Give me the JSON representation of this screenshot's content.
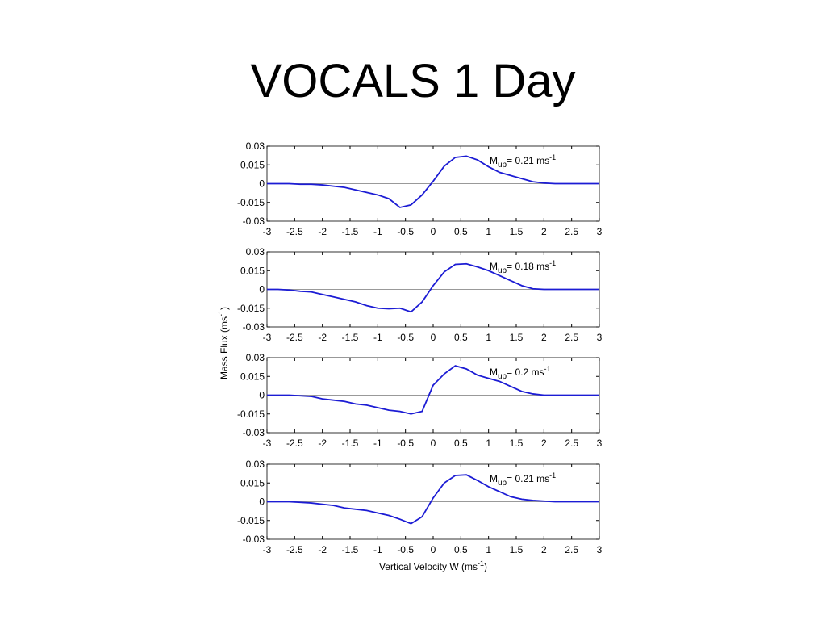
{
  "title": "VOCALS 1 Day",
  "ylabel": {
    "text": "Mass Flux (ms",
    "superscript": "-1",
    "suffix": ")"
  },
  "xlabel": {
    "text": "Vertical Velocity W (ms",
    "superscript": "-1",
    "suffix": ")"
  },
  "chart_data": [
    {
      "type": "line",
      "color": "#1c1cd4",
      "annotation": {
        "symbol": "M",
        "subscript": "up",
        "text": "= 0.21 ms",
        "superscript": "-1"
      },
      "x": [
        -3,
        -2.8,
        -2.6,
        -2.4,
        -2.2,
        -2,
        -1.8,
        -1.6,
        -1.4,
        -1.2,
        -1,
        -0.8,
        -0.6,
        -0.4,
        -0.2,
        0,
        0.2,
        0.4,
        0.6,
        0.8,
        1,
        1.2,
        1.4,
        1.6,
        1.8,
        2,
        2.2,
        2.4,
        2.6,
        2.8,
        3
      ],
      "values": [
        0,
        0,
        0,
        -0.0005,
        -0.0005,
        -0.001,
        -0.002,
        -0.003,
        -0.005,
        -0.007,
        -0.009,
        -0.012,
        -0.019,
        -0.017,
        -0.009,
        0.002,
        0.014,
        0.021,
        0.022,
        0.019,
        0.0135,
        0.009,
        0.0065,
        0.004,
        0.0015,
        0.0005,
        0,
        0,
        0,
        0,
        0
      ],
      "xlim": [
        -3,
        3
      ],
      "xticks": [
        -3,
        -2.5,
        -2,
        -1.5,
        -1,
        -0.5,
        0,
        0.5,
        1,
        1.5,
        2,
        2.5,
        3
      ],
      "ylim": [
        -0.03,
        0.03
      ],
      "yticks": [
        0.03,
        0.015,
        0,
        -0.015,
        -0.03
      ]
    },
    {
      "type": "line",
      "color": "#1c1cd4",
      "annotation": {
        "symbol": "M",
        "subscript": "up",
        "text": "= 0.18 ms",
        "superscript": "-1"
      },
      "x": [
        -3,
        -2.8,
        -2.6,
        -2.4,
        -2.2,
        -2,
        -1.8,
        -1.6,
        -1.4,
        -1.2,
        -1,
        -0.8,
        -0.6,
        -0.4,
        -0.2,
        0,
        0.2,
        0.4,
        0.6,
        0.8,
        1,
        1.2,
        1.4,
        1.6,
        1.8,
        2,
        2.2,
        2.4,
        2.6,
        2.8,
        3
      ],
      "values": [
        0,
        0,
        -0.0005,
        -0.0015,
        -0.002,
        -0.004,
        -0.006,
        -0.008,
        -0.01,
        -0.013,
        -0.015,
        -0.0155,
        -0.015,
        -0.018,
        -0.01,
        0.003,
        0.014,
        0.02,
        0.0205,
        0.018,
        0.015,
        0.011,
        0.007,
        0.003,
        0.0005,
        0,
        0,
        0,
        0,
        0,
        0
      ],
      "xlim": [
        -3,
        3
      ],
      "xticks": [
        -3,
        -2.5,
        -2,
        -1.5,
        -1,
        -0.5,
        0,
        0.5,
        1,
        1.5,
        2,
        2.5,
        3
      ],
      "ylim": [
        -0.03,
        0.03
      ],
      "yticks": [
        0.03,
        0.015,
        0,
        -0.015,
        -0.03
      ]
    },
    {
      "type": "line",
      "color": "#1c1cd4",
      "annotation": {
        "symbol": "M",
        "subscript": "up",
        "text": "= 0.2 ms",
        "superscript": "-1"
      },
      "x": [
        -3,
        -2.8,
        -2.6,
        -2.4,
        -2.2,
        -2,
        -1.8,
        -1.6,
        -1.4,
        -1.2,
        -1,
        -0.8,
        -0.6,
        -0.4,
        -0.2,
        0,
        0.2,
        0.4,
        0.6,
        0.8,
        1,
        1.2,
        1.4,
        1.6,
        1.8,
        2,
        2.2,
        2.4,
        2.6,
        2.8,
        3
      ],
      "values": [
        0,
        0,
        0,
        -0.0005,
        -0.001,
        -0.003,
        -0.004,
        -0.005,
        -0.007,
        -0.008,
        -0.01,
        -0.012,
        -0.013,
        -0.015,
        -0.013,
        0.008,
        0.017,
        0.0235,
        0.021,
        0.016,
        0.0135,
        0.011,
        0.007,
        0.003,
        0.001,
        0,
        0,
        0,
        0,
        0,
        0
      ],
      "xlim": [
        -3,
        3
      ],
      "xticks": [
        -3,
        -2.5,
        -2,
        -1.5,
        -1,
        -0.5,
        0,
        0.5,
        1,
        1.5,
        2,
        2.5,
        3
      ],
      "ylim": [
        -0.03,
        0.03
      ],
      "yticks": [
        0.03,
        0.015,
        0,
        -0.015,
        -0.03
      ]
    },
    {
      "type": "line",
      "color": "#1c1cd4",
      "annotation": {
        "symbol": "M",
        "subscript": "up",
        "text": "= 0.21 ms",
        "superscript": "-1"
      },
      "x": [
        -3,
        -2.8,
        -2.6,
        -2.4,
        -2.2,
        -2,
        -1.8,
        -1.6,
        -1.4,
        -1.2,
        -1,
        -0.8,
        -0.6,
        -0.4,
        -0.2,
        0,
        0.2,
        0.4,
        0.6,
        0.8,
        1,
        1.2,
        1.4,
        1.6,
        1.8,
        2,
        2.2,
        2.4,
        2.6,
        2.8,
        3
      ],
      "values": [
        0,
        0,
        0,
        -0.0005,
        -0.001,
        -0.002,
        -0.003,
        -0.005,
        -0.006,
        -0.007,
        -0.009,
        -0.011,
        -0.014,
        -0.0175,
        -0.012,
        0.003,
        0.015,
        0.021,
        0.0215,
        0.017,
        0.012,
        0.008,
        0.004,
        0.002,
        0.001,
        0.0005,
        0,
        0,
        0,
        0,
        0
      ],
      "xlim": [
        -3,
        3
      ],
      "xticks": [
        -3,
        -2.5,
        -2,
        -1.5,
        -1,
        -0.5,
        0,
        0.5,
        1,
        1.5,
        2,
        2.5,
        3
      ],
      "ylim": [
        -0.03,
        0.03
      ],
      "yticks": [
        0.03,
        0.015,
        0,
        -0.015,
        -0.03
      ]
    }
  ]
}
